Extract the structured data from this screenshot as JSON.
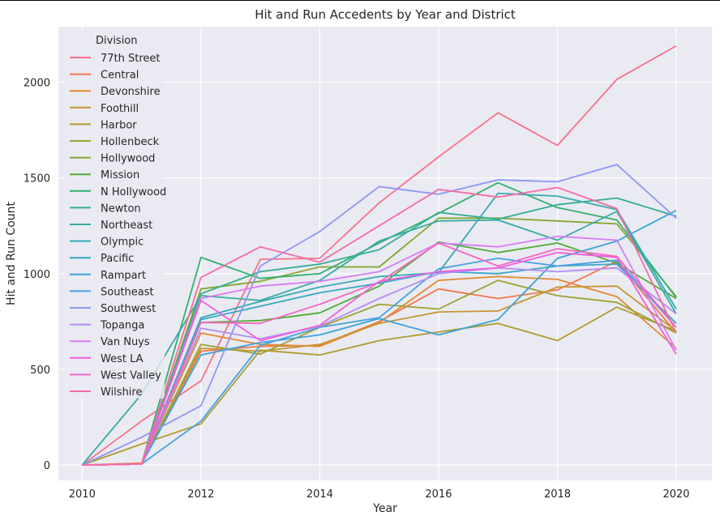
{
  "chart_data": {
    "type": "line",
    "title": "Hit and Run Accedents by Year and District",
    "xlabel": "Year",
    "ylabel": "Hit and Run Count",
    "xlim": [
      2009.6,
      2020.6
    ],
    "ylim": [
      -80,
      2290
    ],
    "x_ticks": [
      "2010",
      "2012",
      "2014",
      "2016",
      "2018",
      "2020"
    ],
    "y_ticks": [
      "0",
      "500",
      "1000",
      "1500",
      "2000"
    ],
    "x": [
      2010,
      2011,
      2012,
      2013,
      2014,
      2015,
      2016,
      2017,
      2018,
      2019,
      2020
    ],
    "grid": true,
    "background": "#eaeaf2",
    "legend": {
      "title": "Division",
      "position": "top-left"
    },
    "series": [
      {
        "name": "77th Street",
        "color": "#f77189",
        "values": [
          0,
          230,
          440,
          1075,
          1080,
          1370,
          1610,
          1840,
          1670,
          2015,
          2190
        ]
      },
      {
        "name": "Central",
        "color": "#f3764a",
        "values": [
          0,
          10,
          595,
          620,
          625,
          750,
          920,
          870,
          915,
          1065,
          690
        ]
      },
      {
        "name": "Devonshire",
        "color": "#e18a33",
        "values": [
          0,
          5,
          690,
          630,
          620,
          745,
          965,
          985,
          970,
          880,
          610
        ]
      },
      {
        "name": "Foothill",
        "color": "#c69532",
        "values": [
          0,
          5,
          610,
          595,
          630,
          740,
          800,
          805,
          930,
          935,
          700
        ]
      },
      {
        "name": "Harbor",
        "color": "#b09b31",
        "values": [
          0,
          110,
          215,
          600,
          575,
          650,
          695,
          740,
          650,
          825,
          700
        ]
      },
      {
        "name": "Hollenbeck",
        "color": "#9da232",
        "values": [
          0,
          5,
          630,
          580,
          720,
          840,
          815,
          965,
          885,
          850,
          690
        ]
      },
      {
        "name": "Hollywood",
        "color": "#84a731",
        "values": [
          0,
          5,
          920,
          960,
          1035,
          1035,
          1290,
          1290,
          1275,
          1260,
          880
        ]
      },
      {
        "name": "Mission",
        "color": "#51ad33",
        "values": [
          0,
          5,
          745,
          755,
          795,
          935,
          1165,
          1110,
          1160,
          1055,
          870
        ]
      },
      {
        "name": "N Hollywood",
        "color": "#33b06e",
        "values": [
          0,
          5,
          1085,
          975,
          1000,
          1160,
          1315,
          1475,
          1345,
          1280,
          875
        ]
      },
      {
        "name": "Newton",
        "color": "#34ae8f",
        "values": [
          0,
          5,
          895,
          1010,
          1050,
          1125,
          1320,
          1285,
          1360,
          1395,
          1300
        ]
      },
      {
        "name": "Northeast",
        "color": "#35aca3",
        "values": [
          0,
          370,
          885,
          860,
          965,
          1170,
          1275,
          1280,
          1175,
          1325,
          790
        ]
      },
      {
        "name": "Olympic",
        "color": "#36aab3",
        "values": [
          0,
          5,
          770,
          855,
          930,
          985,
          1005,
          1420,
          1405,
          1335,
          815
        ]
      },
      {
        "name": "Pacific",
        "color": "#37a7c4",
        "values": [
          0,
          5,
          760,
          830,
          900,
          950,
          1010,
          1000,
          1040,
          1050,
          740
        ]
      },
      {
        "name": "Rampart",
        "color": "#3ba3d8",
        "values": [
          0,
          5,
          575,
          640,
          680,
          765,
          680,
          760,
          1080,
          1170,
          1330
        ]
      },
      {
        "name": "Southeast",
        "color": "#48a1e0",
        "values": [
          0,
          5,
          230,
          625,
          720,
          770,
          1025,
          1080,
          1040,
          1070,
          720
        ]
      },
      {
        "name": "Southwest",
        "color": "#8c97f4",
        "values": [
          0,
          145,
          310,
          1040,
          1220,
          1455,
          1415,
          1490,
          1480,
          1570,
          1290
        ]
      },
      {
        "name": "Topanga",
        "color": "#b58cf4",
        "values": [
          0,
          5,
          715,
          660,
          725,
          870,
          1000,
          1030,
          1010,
          1030,
          790
        ]
      },
      {
        "name": "Van Nuys",
        "color": "#d77cf2",
        "values": [
          0,
          5,
          870,
          935,
          960,
          1010,
          1160,
          1140,
          1195,
          1175,
          600
        ]
      },
      {
        "name": "West LA",
        "color": "#f15ee0",
        "values": [
          0,
          5,
          860,
          650,
          730,
          960,
          1010,
          1030,
          1110,
          1085,
          580
        ]
      },
      {
        "name": "West Valley",
        "color": "#f466c3",
        "values": [
          0,
          5,
          745,
          740,
          840,
          955,
          1160,
          1040,
          1130,
          1090,
          720
        ]
      },
      {
        "name": "Wilshire",
        "color": "#f56ca6",
        "values": [
          0,
          5,
          980,
          1140,
          1060,
          1250,
          1440,
          1400,
          1450,
          1340,
          690
        ]
      }
    ]
  }
}
